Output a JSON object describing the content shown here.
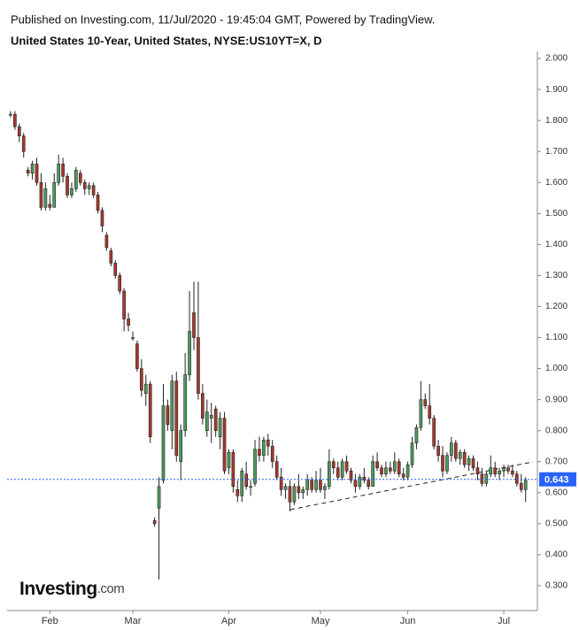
{
  "header": {
    "published": "Published on Investing.com, 11/Jul/2020 - 19:45:04 GMT, Powered by TradingView.",
    "instrument": "United States 10-Year, United States, NYSE:US10YT=X, D"
  },
  "logo": {
    "brand": "Investing",
    "suffix": ".com"
  },
  "chart_data": {
    "type": "candlestick",
    "open": [
      1.82,
      1.82,
      1.78,
      1.75,
      1.64,
      1.63,
      1.66,
      1.6,
      1.52,
      1.53,
      1.52,
      1.6,
      1.66,
      1.62,
      1.56,
      1.58,
      1.63,
      1.6,
      1.58,
      1.59,
      1.56,
      1.51,
      1.43,
      1.38,
      1.34,
      1.3,
      1.25,
      1.16,
      1.1,
      1.08,
      1.0,
      0.92,
      0.95,
      0.51,
      0.55,
      0.64,
      0.88,
      0.8,
      0.96,
      0.7,
      0.8,
      0.98,
      1.18,
      1.1,
      0.92,
      0.8,
      0.84,
      0.87,
      0.78,
      0.84,
      0.68,
      0.73,
      0.61,
      0.59,
      0.66,
      0.62,
      0.63,
      0.74,
      0.72,
      0.77,
      0.75,
      0.7,
      0.65,
      0.61,
      0.62,
      0.57,
      0.62,
      0.6,
      0.61,
      0.64,
      0.61,
      0.64,
      0.61,
      0.62,
      0.7,
      0.68,
      0.65,
      0.7,
      0.67,
      0.64,
      0.62,
      0.65,
      0.64,
      0.62,
      0.7,
      0.68,
      0.66,
      0.68,
      0.67,
      0.7,
      0.66,
      0.65,
      0.69,
      0.76,
      0.81,
      0.9,
      0.88,
      0.84,
      0.75,
      0.72,
      0.67,
      0.72,
      0.76,
      0.71,
      0.73,
      0.69,
      0.71,
      0.68,
      0.66,
      0.63,
      0.66,
      0.68,
      0.66,
      0.67,
      0.68,
      0.67,
      0.66,
      0.63,
      0.61
    ],
    "high": [
      1.83,
      1.83,
      1.79,
      1.76,
      1.65,
      1.67,
      1.68,
      1.63,
      1.6,
      1.56,
      1.63,
      1.69,
      1.68,
      1.63,
      1.6,
      1.65,
      1.64,
      1.61,
      1.6,
      1.6,
      1.57,
      1.52,
      1.44,
      1.39,
      1.35,
      1.31,
      1.26,
      1.18,
      1.12,
      1.09,
      1.03,
      0.98,
      0.96,
      0.52,
      0.65,
      0.95,
      0.9,
      0.98,
      0.99,
      0.82,
      1.05,
      1.25,
      1.28,
      1.28,
      0.95,
      0.9,
      0.89,
      0.88,
      0.86,
      0.86,
      0.74,
      0.74,
      0.64,
      0.68,
      0.7,
      0.64,
      0.77,
      0.78,
      0.78,
      0.79,
      0.77,
      0.72,
      0.68,
      0.63,
      0.64,
      0.63,
      0.66,
      0.62,
      0.66,
      0.65,
      0.67,
      0.68,
      0.63,
      0.74,
      0.71,
      0.7,
      0.71,
      0.72,
      0.68,
      0.66,
      0.66,
      0.68,
      0.65,
      0.72,
      0.73,
      0.69,
      0.7,
      0.7,
      0.73,
      0.71,
      0.68,
      0.7,
      0.78,
      0.82,
      0.96,
      0.92,
      0.95,
      0.85,
      0.77,
      0.75,
      0.73,
      0.78,
      0.77,
      0.74,
      0.74,
      0.72,
      0.72,
      0.7,
      0.68,
      0.67,
      0.72,
      0.7,
      0.68,
      0.69,
      0.69,
      0.69,
      0.67,
      0.66,
      0.65
    ],
    "low": [
      1.81,
      1.77,
      1.73,
      1.68,
      1.62,
      1.61,
      1.59,
      1.51,
      1.51,
      1.51,
      1.52,
      1.59,
      1.6,
      1.55,
      1.55,
      1.57,
      1.59,
      1.56,
      1.56,
      1.55,
      1.5,
      1.44,
      1.38,
      1.33,
      1.29,
      1.24,
      1.12,
      1.12,
      1.09,
      0.99,
      0.91,
      0.88,
      0.76,
      0.49,
      0.32,
      0.63,
      0.8,
      0.74,
      0.7,
      0.64,
      0.78,
      0.96,
      1.06,
      0.9,
      0.82,
      0.78,
      0.76,
      0.78,
      0.74,
      0.66,
      0.66,
      0.6,
      0.57,
      0.57,
      0.61,
      0.59,
      0.62,
      0.7,
      0.7,
      0.72,
      0.68,
      0.64,
      0.59,
      0.58,
      0.54,
      0.56,
      0.58,
      0.58,
      0.59,
      0.6,
      0.6,
      0.6,
      0.58,
      0.61,
      0.66,
      0.64,
      0.64,
      0.66,
      0.63,
      0.6,
      0.61,
      0.63,
      0.61,
      0.62,
      0.67,
      0.65,
      0.65,
      0.66,
      0.66,
      0.65,
      0.64,
      0.64,
      0.68,
      0.74,
      0.8,
      0.87,
      0.82,
      0.74,
      0.7,
      0.65,
      0.66,
      0.7,
      0.7,
      0.69,
      0.68,
      0.67,
      0.67,
      0.64,
      0.62,
      0.62,
      0.65,
      0.65,
      0.64,
      0.65,
      0.66,
      0.65,
      0.62,
      0.6,
      0.57
    ],
    "close": [
      1.82,
      1.78,
      1.75,
      1.7,
      1.63,
      1.66,
      1.6,
      1.52,
      1.58,
      1.52,
      1.6,
      1.66,
      1.62,
      1.56,
      1.58,
      1.64,
      1.6,
      1.58,
      1.59,
      1.56,
      1.51,
      1.46,
      1.39,
      1.34,
      1.3,
      1.25,
      1.16,
      1.14,
      1.1,
      1.0,
      0.93,
      0.95,
      0.78,
      0.5,
      0.62,
      0.88,
      0.82,
      0.96,
      0.72,
      0.8,
      0.98,
      1.12,
      1.1,
      0.92,
      0.84,
      0.86,
      0.85,
      0.8,
      0.84,
      0.67,
      0.73,
      0.62,
      0.59,
      0.67,
      0.62,
      0.62,
      0.74,
      0.72,
      0.77,
      0.75,
      0.7,
      0.65,
      0.61,
      0.62,
      0.57,
      0.62,
      0.6,
      0.61,
      0.64,
      0.61,
      0.64,
      0.61,
      0.62,
      0.7,
      0.68,
      0.65,
      0.7,
      0.67,
      0.64,
      0.62,
      0.65,
      0.64,
      0.62,
      0.7,
      0.68,
      0.66,
      0.68,
      0.67,
      0.7,
      0.66,
      0.65,
      0.69,
      0.76,
      0.81,
      0.9,
      0.88,
      0.84,
      0.75,
      0.72,
      0.67,
      0.72,
      0.76,
      0.71,
      0.73,
      0.69,
      0.71,
      0.68,
      0.66,
      0.63,
      0.66,
      0.68,
      0.66,
      0.67,
      0.68,
      0.67,
      0.66,
      0.63,
      0.61,
      0.64
    ],
    "up_color": "#4f9a5e",
    "down_color": "#a8392c",
    "last_price": 0.643,
    "last_price_color": "#2962ff",
    "xlim": [
      -0.8,
      120.7
    ],
    "xticks": [
      {
        "value": 9,
        "label": "Feb"
      },
      {
        "value": 28,
        "label": "Mar"
      },
      {
        "value": 50,
        "label": "Apr"
      },
      {
        "value": 71,
        "label": "May"
      },
      {
        "value": 91,
        "label": "Jun"
      },
      {
        "value": 113,
        "label": "Jul"
      }
    ],
    "ylim": [
      0.22,
      2.023
    ],
    "yticks": [
      {
        "value": 0.3,
        "label": "0.300"
      },
      {
        "value": 0.4,
        "label": "0.400"
      },
      {
        "value": 0.5,
        "label": "0.500"
      },
      {
        "value": 0.6,
        "label": "0.600"
      },
      {
        "value": 0.7,
        "label": "0.700"
      },
      {
        "value": 0.8,
        "label": "0.800"
      },
      {
        "value": 0.9,
        "label": "0.900"
      },
      {
        "value": 1,
        "label": "1.000"
      },
      {
        "value": 1.1,
        "label": "1.100"
      },
      {
        "value": 1.2,
        "label": "1.200"
      },
      {
        "value": 1.3,
        "label": "1.300"
      },
      {
        "value": 1.4,
        "label": "1.400"
      },
      {
        "value": 1.5,
        "label": "1.500"
      },
      {
        "value": 1.6,
        "label": "1.600"
      },
      {
        "value": 1.7,
        "label": "1.700"
      },
      {
        "value": 1.8,
        "label": "1.800"
      },
      {
        "value": 1.9,
        "label": "1.900"
      },
      {
        "value": 2,
        "label": "2.000"
      }
    ]
  }
}
